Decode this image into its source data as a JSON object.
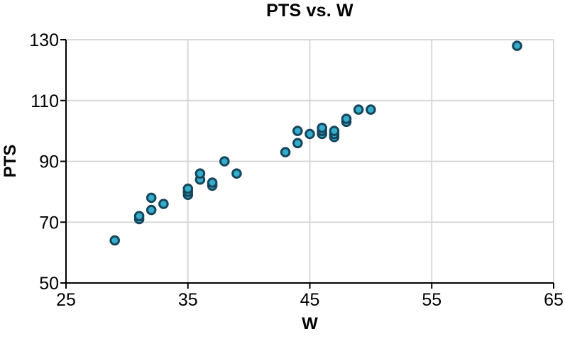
{
  "chart_data": {
    "type": "scatter",
    "title": "PTS vs. W",
    "xlabel": "W",
    "ylabel": "PTS",
    "xlim": [
      25,
      65
    ],
    "ylim": [
      50,
      130
    ],
    "xticks": [
      25,
      35,
      45,
      55,
      65
    ],
    "yticks": [
      50,
      70,
      90,
      110,
      130
    ],
    "grid": true,
    "legend": false,
    "points": [
      {
        "w": 29,
        "pts": 64
      },
      {
        "w": 31,
        "pts": 71
      },
      {
        "w": 31,
        "pts": 72
      },
      {
        "w": 32,
        "pts": 74
      },
      {
        "w": 32,
        "pts": 78
      },
      {
        "w": 33,
        "pts": 76
      },
      {
        "w": 35,
        "pts": 79
      },
      {
        "w": 35,
        "pts": 80
      },
      {
        "w": 35,
        "pts": 81
      },
      {
        "w": 36,
        "pts": 84
      },
      {
        "w": 36,
        "pts": 86
      },
      {
        "w": 37,
        "pts": 82
      },
      {
        "w": 37,
        "pts": 83
      },
      {
        "w": 38,
        "pts": 90
      },
      {
        "w": 39,
        "pts": 86
      },
      {
        "w": 43,
        "pts": 93
      },
      {
        "w": 44,
        "pts": 96
      },
      {
        "w": 44,
        "pts": 100
      },
      {
        "w": 45,
        "pts": 99
      },
      {
        "w": 46,
        "pts": 99
      },
      {
        "w": 46,
        "pts": 100
      },
      {
        "w": 46,
        "pts": 101
      },
      {
        "w": 47,
        "pts": 98
      },
      {
        "w": 47,
        "pts": 99
      },
      {
        "w": 47,
        "pts": 100
      },
      {
        "w": 48,
        "pts": 103
      },
      {
        "w": 48,
        "pts": 104
      },
      {
        "w": 49,
        "pts": 107
      },
      {
        "w": 50,
        "pts": 107
      },
      {
        "w": 62,
        "pts": 128
      }
    ],
    "colors": {
      "point_fill": "#33adcb",
      "point_edge": "#16465c",
      "gridline": "#d4d4d4",
      "axis": "#000000",
      "background": "#ffffff"
    }
  }
}
